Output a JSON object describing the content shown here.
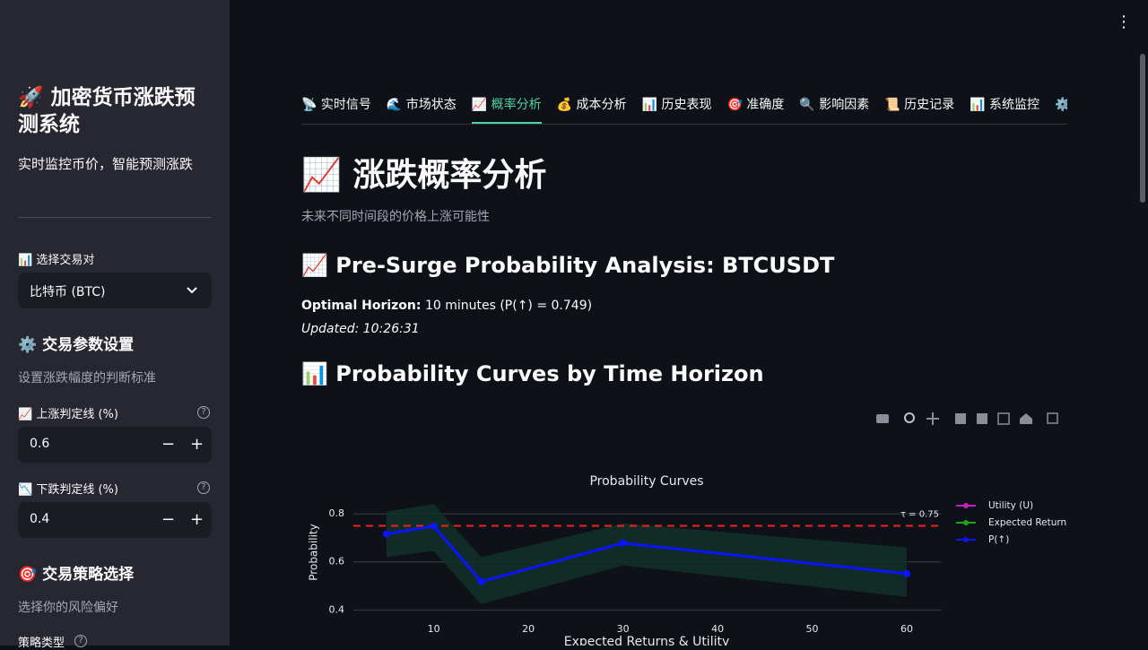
{
  "sidebar": {
    "title": "🚀 加密货币涨跌预测系统",
    "subtitle": "实时监控币价，智能预测涨跌",
    "pair_label": "📊 选择交易对",
    "pair_value": "比特币 (BTC)",
    "params_heading": "⚙️ 交易参数设置",
    "params_caption": "设置涨跌幅度的判断标准",
    "rise_threshold": {
      "label": "📈 上涨判定线 (%)",
      "value": 0.6
    },
    "fall_threshold": {
      "label": "📉 下跌判定线 (%)",
      "value": 0.4
    },
    "strategy_heading": "🎯 交易策略选择",
    "strategy_caption": "选择你的风险偏好",
    "strategy_label": "策略类型"
  },
  "tabs": [
    "📡 实时信号",
    "🌊 市场状态",
    "📈 概率分析",
    "💰 成本分析",
    "📊 历史表现",
    "🎯 准确度",
    "🔍 影响因素",
    "📜 历史记录",
    "📊 系统监控",
    "⚙️ 系"
  ],
  "main": {
    "title": "📈 涨跌概率分析",
    "caption": "未来不同时间段的价格上涨可能性",
    "analysis_heading": "📈 Pre-Surge Probability Analysis: BTCUSDT",
    "optimal_label": "Optimal Horizon:",
    "optimal_text": " 10 minutes (P(↑) = 0.749)",
    "updated": "Updated: 10:26:31",
    "curves_heading": "📊 Probability Curves by Time Horizon"
  },
  "chart_data": {
    "type": "line",
    "title": "Probability Curves",
    "y_label": "Probability",
    "subplot_title": "Expected Returns & Utility",
    "x": [
      5,
      10,
      15,
      30,
      60
    ],
    "series": [
      {
        "name": "Utility (U)",
        "color": "#c21fc2",
        "values": [
          null,
          null,
          null,
          null,
          null
        ]
      },
      {
        "name": "Expected Return",
        "color": "#1fa31f",
        "values": [
          null,
          null,
          null,
          null,
          null
        ]
      },
      {
        "name": "P(↑)",
        "color": "#0a14ff",
        "values": [
          0.716,
          0.749,
          0.518,
          0.678,
          0.551
        ]
      }
    ],
    "band": {
      "color": "#12302a",
      "upper": [
        0.81,
        0.84,
        0.62,
        0.76,
        0.66
      ],
      "lower": [
        0.62,
        0.645,
        0.424,
        0.585,
        0.454
      ]
    },
    "threshold": {
      "value": 0.75,
      "label": "τ = 0.75",
      "color": "#ee2222"
    },
    "xlim": [
      1.5,
      63.6
    ],
    "ylim": [
      0.39,
      0.86
    ],
    "xticks": [
      10,
      20,
      30,
      40,
      50,
      60
    ],
    "yticks": [
      0.4,
      0.6,
      0.8
    ],
    "grid": true
  }
}
